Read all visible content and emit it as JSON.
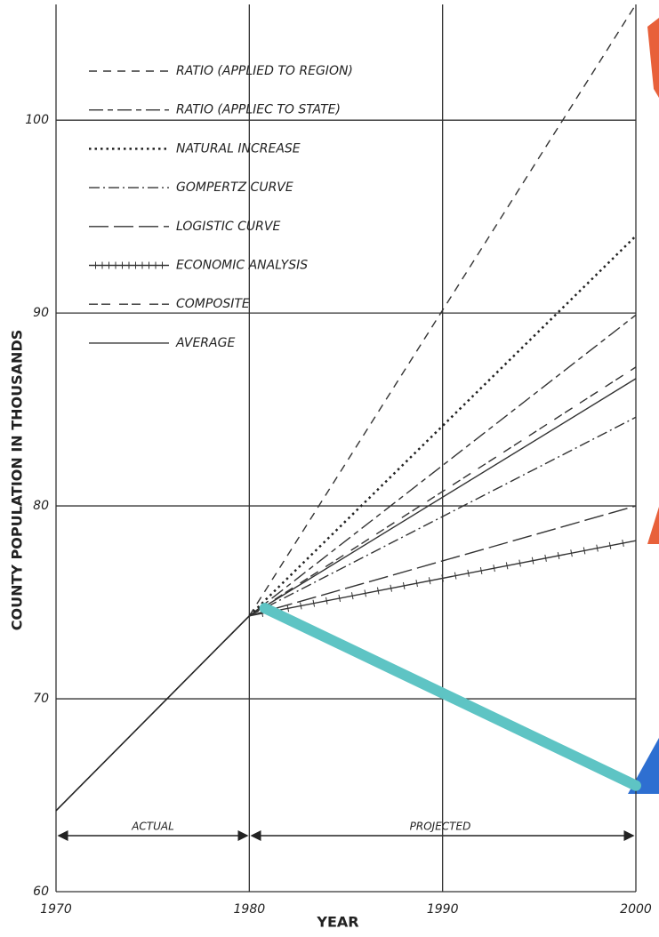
{
  "chart_data": {
    "type": "line",
    "y_label": "COUNTY POPULATION IN THOUSANDS",
    "x_label": "YEAR",
    "annotations": [
      "ACTUAL",
      "PROJECTED"
    ],
    "xlim": [
      1970,
      2000
    ],
    "xticks": [
      1970,
      1980,
      1990,
      2000
    ],
    "ylim": [
      60,
      106
    ],
    "yticks": [
      60,
      70,
      80,
      90,
      100
    ],
    "grid": true,
    "series": [
      {
        "name": "RATIO (APPLIED TO REGION)",
        "color": "#333333",
        "style": "dashed",
        "x": [
          1980,
          2000
        ],
        "values": [
          74.3,
          106
        ]
      },
      {
        "name": "RATIO (APPLIEC TO STATE)",
        "color": "#333333",
        "style": "long-short",
        "x": [
          1980,
          2000
        ],
        "values": [
          74.3,
          89.9
        ]
      },
      {
        "name": "NATURAL INCREASE",
        "color": "#222222",
        "style": "dotted",
        "x": [
          1980,
          2000
        ],
        "values": [
          74.3,
          94
        ]
      },
      {
        "name": "GOMPERTZ CURVE",
        "color": "#333333",
        "style": "dash-dot",
        "x": [
          1980,
          2000
        ],
        "values": [
          74.3,
          84.6
        ]
      },
      {
        "name": "LOGISTIC CURVE",
        "color": "#333333",
        "style": "long-dash",
        "x": [
          1980,
          2000
        ],
        "values": [
          74.3,
          80
        ]
      },
      {
        "name": "ECONOMIC ANALYSIS",
        "color": "#333333",
        "style": "ticked",
        "x": [
          1980,
          2000
        ],
        "values": [
          74.3,
          78.2
        ]
      },
      {
        "name": "COMPOSITE",
        "color": "#333333",
        "style": "composite",
        "x": [
          1980,
          2000
        ],
        "values": [
          74.3,
          87.2
        ]
      },
      {
        "name": "AVERAGE",
        "color": "#333333",
        "style": "solid",
        "x": [
          1980,
          2000
        ],
        "values": [
          74.3,
          86.6
        ]
      }
    ],
    "actual": {
      "color": "#222222",
      "x": [
        1970,
        1980
      ],
      "values": [
        64.2,
        74.3
      ]
    },
    "overlay": {
      "color": "#5ec4c4",
      "x": [
        1980.8,
        2000
      ],
      "values": [
        74.7,
        65.5
      ]
    }
  }
}
